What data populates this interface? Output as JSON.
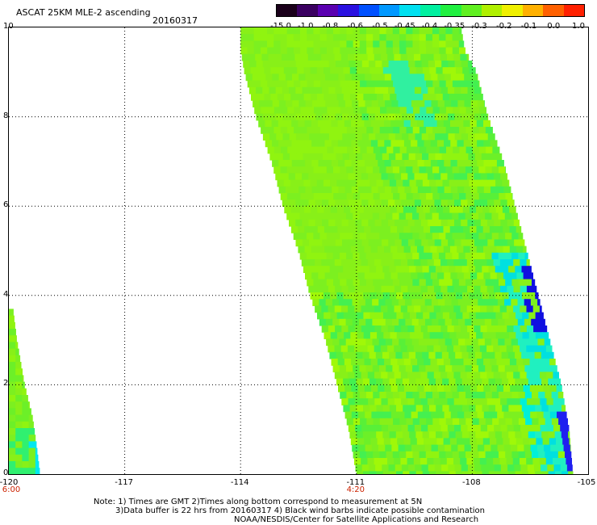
{
  "header": {
    "title": "ASCAT 25KM MLE-2 ascending",
    "date": "20160317"
  },
  "colorbar": {
    "labels": [
      "-15.0",
      "-1.0",
      "-0.8",
      "-0.6",
      "-0.5",
      "-0.45",
      "-0.4",
      "-0.35",
      "-0.3",
      "-0.2",
      "-0.1",
      "0.0",
      "1.0"
    ],
    "colors": [
      "#1a001a",
      "#3a0060",
      "#5a00b0",
      "#2a10e0",
      "#0050ff",
      "#0098ff",
      "#00e0f0",
      "#00f0a0",
      "#20f040",
      "#60f020",
      "#b0f000",
      "#f0f000",
      "#ffb000",
      "#ff6000",
      "#ff2000"
    ]
  },
  "axes": {
    "x_ticks": [
      "-120",
      "-117",
      "-114",
      "-111",
      "-108",
      "-105"
    ],
    "y_ticks": [
      "0",
      "2",
      "4",
      "6",
      "8",
      "10"
    ],
    "time_labels": [
      {
        "text": "6:00",
        "lon": -120
      },
      {
        "text": "4:20",
        "lon": -111
      }
    ]
  },
  "map": {
    "lon_range": [
      -120,
      -105
    ],
    "lat_range": [
      0,
      10
    ],
    "grid": true,
    "swaths": [
      {
        "name": "main",
        "left_edge": [
          [
            -111.0,
            0
          ],
          [
            -111.2,
            1
          ],
          [
            -111.5,
            2
          ],
          [
            -111.8,
            3
          ],
          [
            -112.2,
            4
          ],
          [
            -112.5,
            5
          ],
          [
            -112.9,
            6
          ],
          [
            -113.2,
            7
          ],
          [
            -113.6,
            8
          ],
          [
            -113.9,
            9
          ],
          [
            -114.0,
            9.5
          ],
          [
            -114.0,
            10
          ]
        ],
        "right_edge": [
          [
            -108.3,
            10
          ],
          [
            -108.2,
            9.5
          ],
          [
            -107.9,
            9
          ],
          [
            -107.6,
            8
          ],
          [
            -107.2,
            7
          ],
          [
            -106.9,
            6
          ],
          [
            -106.6,
            5
          ],
          [
            -106.3,
            4
          ],
          [
            -106.0,
            3
          ],
          [
            -105.7,
            2
          ],
          [
            -105.5,
            1
          ],
          [
            -105.4,
            0
          ]
        ]
      },
      {
        "name": "left",
        "left_edge": [
          [
            -120.0,
            0
          ],
          [
            -120.0,
            3.7
          ]
        ],
        "right_edge": [
          [
            -119.9,
            3.7
          ],
          [
            -119.8,
            3.0
          ],
          [
            -119.6,
            2.0
          ],
          [
            -119.4,
            1.3
          ],
          [
            -119.3,
            0.7
          ],
          [
            -119.2,
            0
          ]
        ]
      }
    ]
  },
  "notes": {
    "line1": "Note: 1) Times are GMT 2)Times along bottom correspond to measurement at 5N",
    "line2": "3)Data buffer is 22 hrs from 20160317 4) Black wind barbs indicate possible contamination",
    "line3": "NOAA/NESDIS/Center for Satellite Applications and Research"
  }
}
